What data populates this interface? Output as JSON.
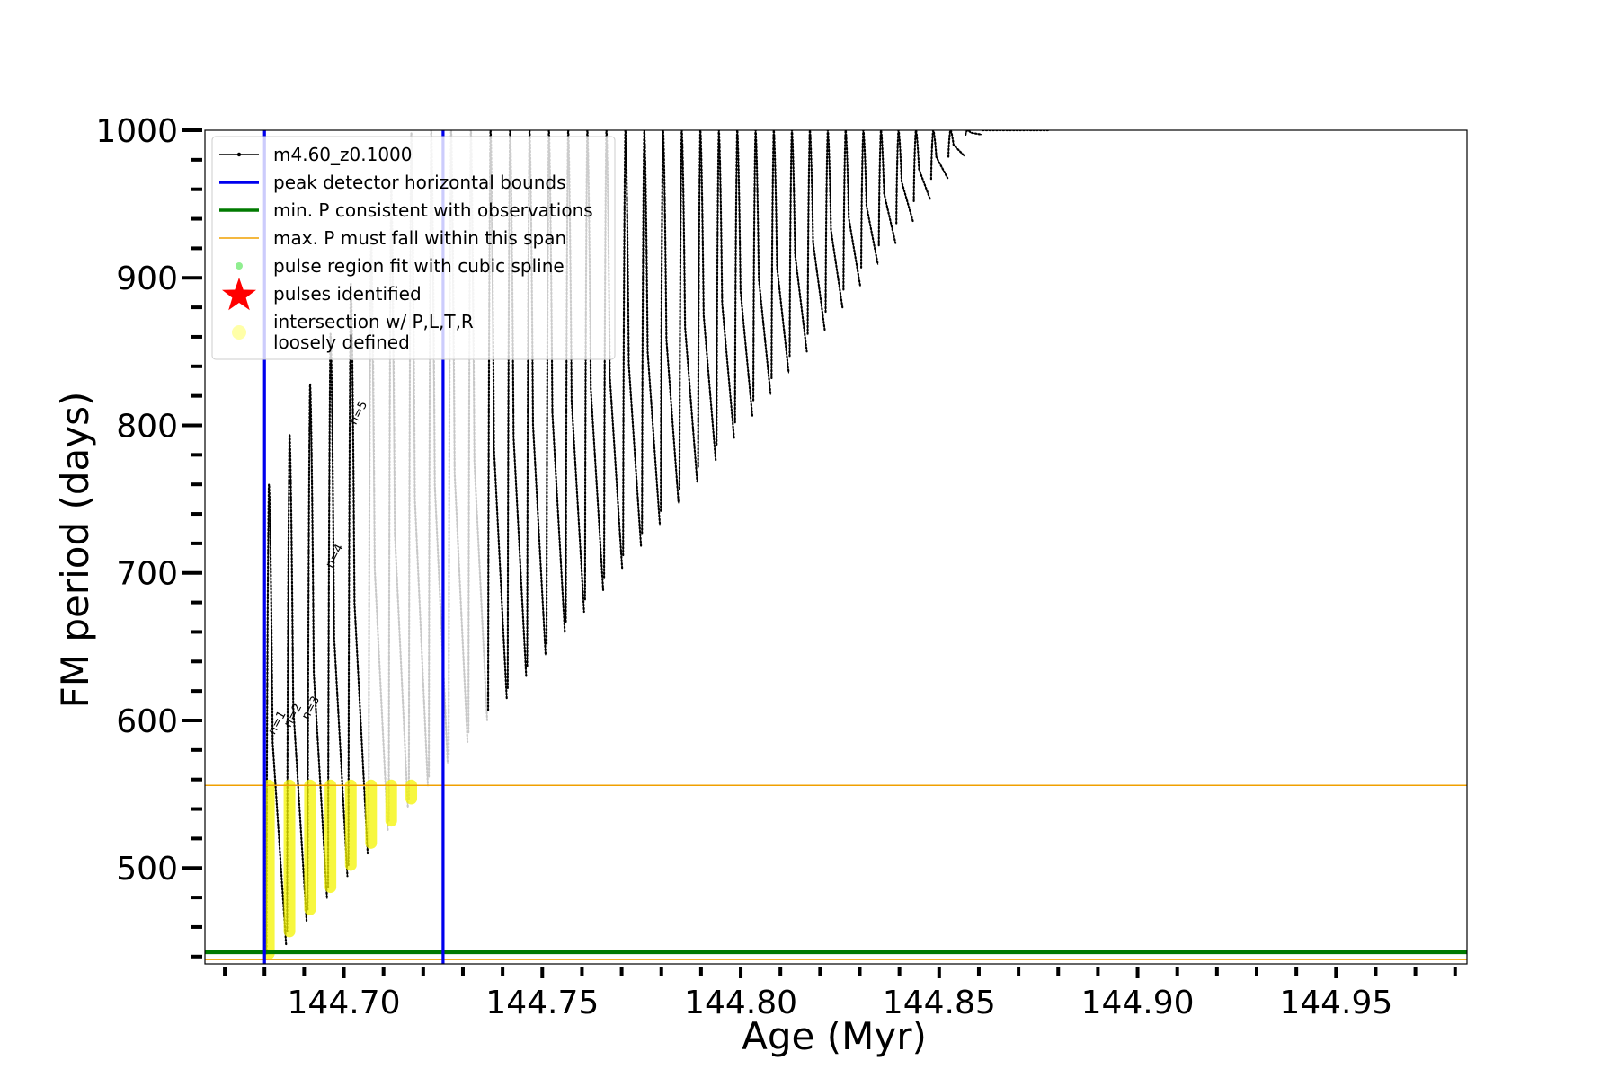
{
  "chart_data": {
    "type": "line",
    "title": "",
    "xlabel": "Age (Myr)",
    "ylabel": "FM period (days)",
    "xlim": [
      144.665,
      144.983
    ],
    "ylim": [
      435,
      1000
    ],
    "x_ticks": [
      "144.70",
      "144.75",
      "144.80",
      "144.85",
      "144.90",
      "144.95"
    ],
    "x_tick_values": [
      144.7,
      144.75,
      144.8,
      144.85,
      144.9,
      144.95
    ],
    "y_ticks": [
      "500",
      "600",
      "700",
      "800",
      "900",
      "1000"
    ],
    "y_tick_values": [
      500,
      600,
      700,
      800,
      900,
      1000
    ],
    "grid": false,
    "legend_position": "top-left",
    "legend": [
      {
        "label": "m4.60_z0.1000",
        "kind": "line-dot",
        "color": "#000000"
      },
      {
        "label": "peak detector horizontal bounds",
        "kind": "line",
        "color": "#0000ee"
      },
      {
        "label": "min. P consistent with observations",
        "kind": "line",
        "color": "#007a00"
      },
      {
        "label": "max. P must fall within this span",
        "kind": "line-thin",
        "color": "#f0a000"
      },
      {
        "label": "pulse region fit with cubic spline",
        "kind": "dot",
        "color": "#90ee90"
      },
      {
        "label": "pulses identified",
        "kind": "star",
        "color": "#ff0000"
      },
      {
        "label": "intersection w/ P,L,T,R\nloosely defined",
        "kind": "circle",
        "color": "#ffffa8"
      }
    ],
    "vertical_bounds": [
      144.68,
      144.725
    ],
    "min_P": 443,
    "max_P_lines": [
      556,
      438
    ],
    "pulses": {
      "start_x": 144.6805,
      "spacing_start": 0.0052,
      "spacing_end": 0.0042,
      "count": 42,
      "peak_start": 760,
      "peak_step": 34,
      "peak_cap": 1000,
      "trough_start": 442,
      "trough_step": 15,
      "trough_cap": 1000,
      "cap_last_x": 144.8676,
      "cap_last_trough": 996
    },
    "series": [
      {
        "name": "m4.60_z0.1000",
        "color": "#000000"
      }
    ],
    "annotations": [
      "n=1",
      "n=2",
      "n=3",
      "n=4",
      "n=5"
    ],
    "colors": {
      "track": "#000000",
      "track_masked": "#c8c8c8",
      "yellow": "#f5f500",
      "blue": "#0000ee",
      "green": "#007a00",
      "orange": "#f0a000"
    }
  }
}
